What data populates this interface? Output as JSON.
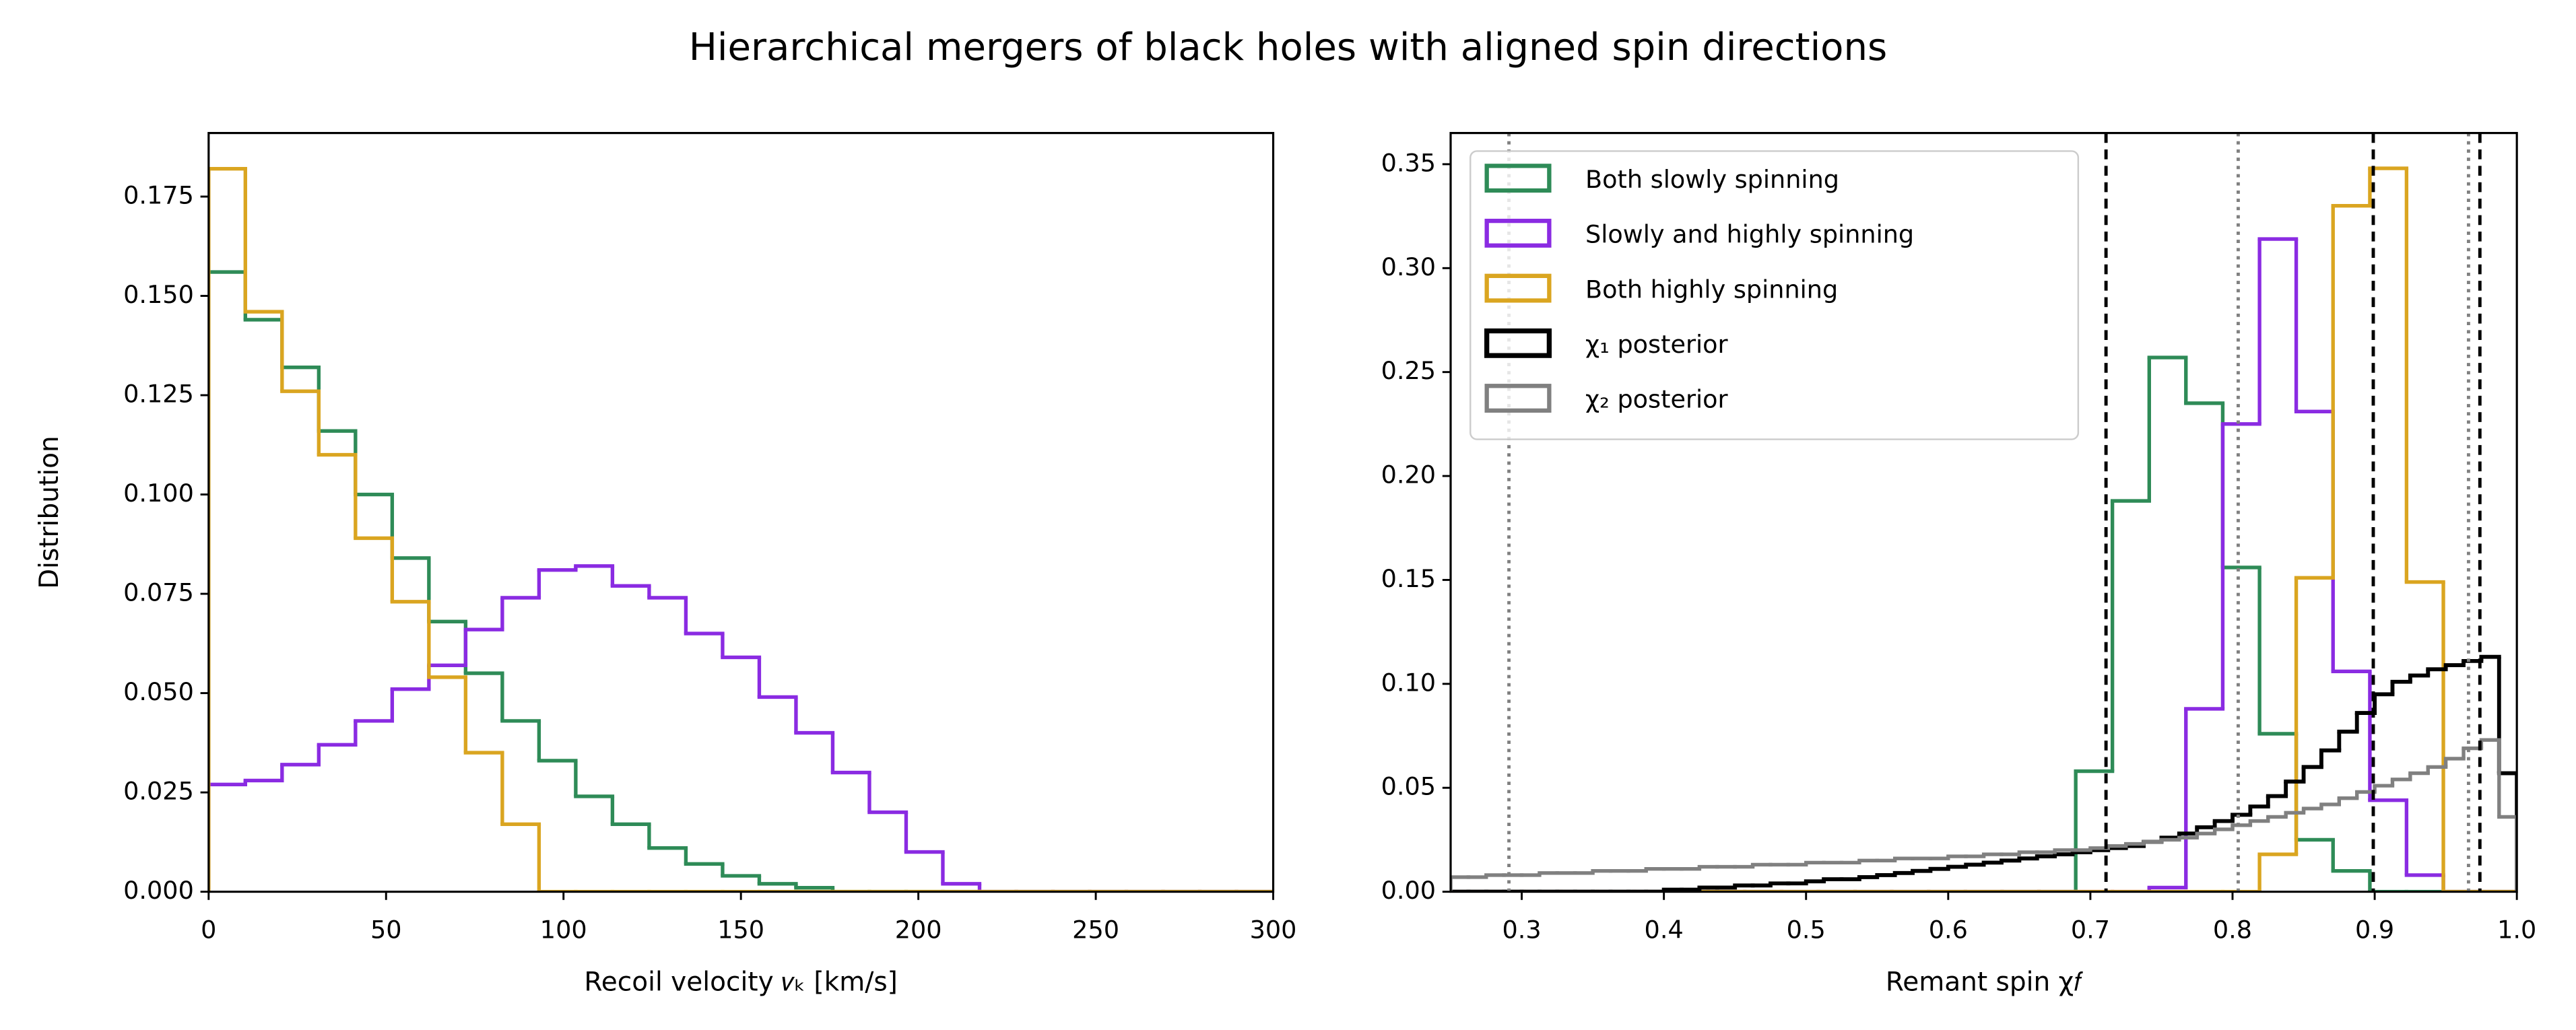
{
  "title": "Hierarchical mergers of black holes with aligned spin directions",
  "chart_data": [
    {
      "type": "histogram",
      "xlabel": "Recoil velocity 𝑣ₖ [km/s]",
      "ylabel": "Distribution",
      "xlim": [
        0,
        300
      ],
      "ylim": [
        0,
        0.191
      ],
      "xticks": [
        0,
        50,
        100,
        150,
        200,
        250,
        300
      ],
      "yticks": [
        {
          "value": 0,
          "label": "0.000"
        },
        {
          "value": 0.025,
          "label": "0.025"
        },
        {
          "value": 0.05,
          "label": "0.050"
        },
        {
          "value": 0.075,
          "label": "0.075"
        },
        {
          "value": 0.1,
          "label": "0.100"
        },
        {
          "value": 0.125,
          "label": "0.125"
        },
        {
          "value": 0.15,
          "label": "0.150"
        },
        {
          "value": 0.175,
          "label": "0.175"
        }
      ],
      "bins": [
        0,
        10.345,
        20.69,
        31.034,
        41.379,
        51.724,
        62.069,
        72.414,
        82.759,
        93.103,
        103.448,
        113.793,
        124.138,
        134.483,
        144.828,
        155.172,
        165.517,
        175.862,
        186.207,
        196.552,
        206.897,
        217.241,
        227.586,
        237.931,
        248.276,
        258.621,
        268.966,
        279.31,
        289.655,
        300
      ],
      "series": [
        {
          "color": "#2e8b57",
          "values": [
            0.156,
            0.144,
            0.132,
            0.116,
            0.1,
            0.084,
            0.068,
            0.055,
            0.043,
            0.033,
            0.024,
            0.017,
            0.011,
            0.007,
            0.004,
            0.002,
            0.001,
            0,
            0,
            0,
            0,
            0,
            0,
            0,
            0,
            0,
            0,
            0,
            0
          ]
        },
        {
          "color": "#8a2be2",
          "values": [
            0.027,
            0.028,
            0.032,
            0.037,
            0.043,
            0.051,
            0.057,
            0.066,
            0.074,
            0.081,
            0.082,
            0.077,
            0.074,
            0.065,
            0.059,
            0.049,
            0.04,
            0.03,
            0.02,
            0.01,
            0.002,
            0,
            0,
            0,
            0,
            0,
            0,
            0,
            0
          ]
        },
        {
          "color": "#daa520",
          "values": [
            0.182,
            0.146,
            0.126,
            0.11,
            0.089,
            0.073,
            0.054,
            0.035,
            0.017,
            0,
            0,
            0,
            0,
            0,
            0,
            0,
            0,
            0,
            0,
            0,
            0,
            0,
            0,
            0,
            0,
            0,
            0,
            0,
            0
          ]
        }
      ]
    },
    {
      "type": "histogram",
      "xlabel": "Remant spin χ𝑓",
      "xlim": [
        0.25,
        1.0
      ],
      "ylim": [
        0,
        0.365
      ],
      "xticks": [
        0.3,
        0.4,
        0.5,
        0.6,
        0.7,
        0.8,
        0.9,
        {
          "value": 1.0,
          "label": "1.0"
        }
      ],
      "yticks": [
        {
          "value": 0,
          "label": "0.00"
        },
        0.05,
        {
          "value": 0.1,
          "label": "0.10"
        },
        0.15,
        {
          "value": 0.2,
          "label": "0.20"
        },
        0.25,
        {
          "value": 0.3,
          "label": "0.30"
        },
        0.35
      ],
      "legend": "upper left",
      "bins": [
        0.25,
        0.2759,
        0.3017,
        0.3276,
        0.3534,
        0.3793,
        0.4052,
        0.431,
        0.4569,
        0.4828,
        0.5086,
        0.5345,
        0.5603,
        0.5862,
        0.6121,
        0.6379,
        0.6638,
        0.6897,
        0.7155,
        0.7414,
        0.7672,
        0.7931,
        0.819,
        0.8448,
        0.8707,
        0.8966,
        0.9224,
        0.9483,
        0.9741,
        1.0
      ],
      "series": [
        {
          "name": "Both slowly spinning",
          "color": "#2e8b57",
          "values": [
            0,
            0,
            0,
            0,
            0,
            0,
            0,
            0,
            0,
            0,
            0,
            0,
            0,
            0,
            0,
            0,
            0,
            0.058,
            0.188,
            0.257,
            0.235,
            0.156,
            0.076,
            0.025,
            0.01,
            0,
            0,
            0,
            0
          ]
        },
        {
          "name": "Slowly and highly spinning",
          "color": "#8a2be2",
          "values": [
            0,
            0,
            0,
            0,
            0,
            0,
            0,
            0,
            0,
            0,
            0,
            0,
            0,
            0,
            0,
            0,
            0,
            0,
            0,
            0.002,
            0.088,
            0.225,
            0.314,
            0.231,
            0.106,
            0.044,
            0.008,
            0,
            0
          ]
        },
        {
          "name": "Both highly spinning",
          "color": "#daa520",
          "values": [
            0,
            0,
            0,
            0,
            0,
            0,
            0,
            0,
            0,
            0,
            0,
            0,
            0,
            0,
            0,
            0,
            0,
            0,
            0,
            0,
            0,
            0,
            0.018,
            0.151,
            0.33,
            0.348,
            0.149,
            0,
            0
          ]
        },
        {
          "name": "χ₁ posterior",
          "color": "#000000",
          "bins": [
            0.25,
            0.2625,
            0.275,
            0.2875,
            0.3,
            0.3125,
            0.325,
            0.3375,
            0.35,
            0.3625,
            0.375,
            0.3875,
            0.4,
            0.4125,
            0.425,
            0.4375,
            0.45,
            0.4625,
            0.475,
            0.4875,
            0.5,
            0.5125,
            0.525,
            0.5375,
            0.55,
            0.5625,
            0.575,
            0.5875,
            0.6,
            0.6125,
            0.625,
            0.6375,
            0.65,
            0.6625,
            0.675,
            0.6875,
            0.7,
            0.7125,
            0.725,
            0.7375,
            0.75,
            0.7625,
            0.775,
            0.7875,
            0.8,
            0.8125,
            0.825,
            0.8375,
            0.85,
            0.8625,
            0.875,
            0.8875,
            0.9,
            0.9125,
            0.925,
            0.9375,
            0.95,
            0.9625,
            0.975,
            0.9875,
            1.0
          ],
          "values": [
            0,
            0,
            0,
            0,
            0,
            0,
            0,
            0,
            0,
            0,
            0,
            0,
            0.001,
            0.001,
            0.002,
            0.002,
            0.003,
            0.003,
            0.004,
            0.004,
            0.005,
            0.006,
            0.006,
            0.007,
            0.008,
            0.009,
            0.01,
            0.011,
            0.012,
            0.013,
            0.014,
            0.015,
            0.016,
            0.017,
            0.018,
            0.019,
            0.02,
            0.021,
            0.022,
            0.024,
            0.026,
            0.028,
            0.031,
            0.034,
            0.037,
            0.041,
            0.046,
            0.053,
            0.06,
            0.068,
            0.077,
            0.086,
            0.095,
            0.101,
            0.104,
            0.107,
            0.109,
            0.111,
            0.113,
            0.057
          ]
        },
        {
          "name": "χ₂ posterior",
          "color": "#808080",
          "bins": [
            0.25,
            0.2625,
            0.275,
            0.2875,
            0.3,
            0.3125,
            0.325,
            0.3375,
            0.35,
            0.3625,
            0.375,
            0.3875,
            0.4,
            0.4125,
            0.425,
            0.4375,
            0.45,
            0.4625,
            0.475,
            0.4875,
            0.5,
            0.5125,
            0.525,
            0.5375,
            0.55,
            0.5625,
            0.575,
            0.5875,
            0.6,
            0.6125,
            0.625,
            0.6375,
            0.65,
            0.6625,
            0.675,
            0.6875,
            0.7,
            0.7125,
            0.725,
            0.7375,
            0.75,
            0.7625,
            0.775,
            0.7875,
            0.8,
            0.8125,
            0.825,
            0.8375,
            0.85,
            0.8625,
            0.875,
            0.8875,
            0.9,
            0.9125,
            0.925,
            0.9375,
            0.95,
            0.9625,
            0.975,
            0.9875,
            1.0
          ],
          "values": [
            0.007,
            0.007,
            0.008,
            0.008,
            0.008,
            0.009,
            0.009,
            0.009,
            0.01,
            0.01,
            0.01,
            0.011,
            0.011,
            0.011,
            0.012,
            0.012,
            0.012,
            0.013,
            0.013,
            0.013,
            0.014,
            0.014,
            0.014,
            0.015,
            0.015,
            0.016,
            0.016,
            0.016,
            0.017,
            0.017,
            0.018,
            0.018,
            0.019,
            0.019,
            0.02,
            0.02,
            0.021,
            0.022,
            0.023,
            0.024,
            0.025,
            0.026,
            0.028,
            0.03,
            0.032,
            0.034,
            0.036,
            0.038,
            0.04,
            0.042,
            0.045,
            0.048,
            0.051,
            0.054,
            0.057,
            0.06,
            0.064,
            0.069,
            0.073,
            0.036
          ]
        }
      ],
      "vlines": [
        {
          "value": 0.711,
          "color": "#000000",
          "dash": "dashed"
        },
        {
          "value": 0.899,
          "color": "#000000",
          "dash": "dashed"
        },
        {
          "value": 0.974,
          "color": "#000000",
          "dash": "dashed"
        },
        {
          "value": 0.291,
          "color": "#808080",
          "dash": "dotted"
        },
        {
          "value": 0.804,
          "color": "#808080",
          "dash": "dotted"
        },
        {
          "value": 0.966,
          "color": "#808080",
          "dash": "dotted"
        }
      ]
    }
  ]
}
